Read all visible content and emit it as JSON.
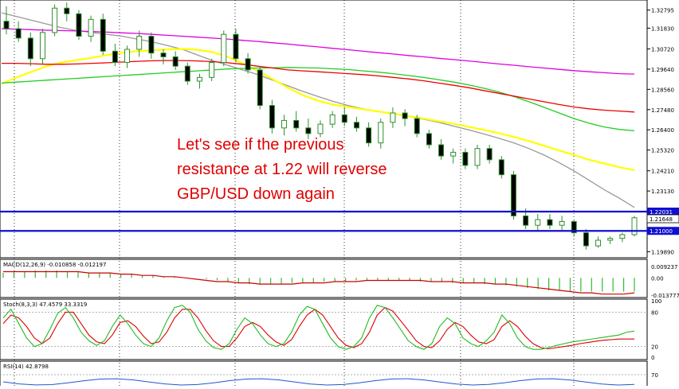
{
  "chart_data": {
    "type": "candlestick",
    "instrument": "GBP/USD",
    "annotation": [
      "Let's see if the previous",
      "resistance at 1.22 will reverse",
      "GBP/USD down again"
    ],
    "price_axis": {
      "ticks": [
        "1.32795",
        "1.31830",
        "1.30720",
        "1.29640",
        "1.28560",
        "1.27480",
        "1.26400",
        "1.25320",
        "1.24210",
        "1.23130",
        "1.19890"
      ],
      "ylim": [
        1.1965,
        1.3325
      ]
    },
    "horizontal_levels": [
      {
        "value": 1.22031,
        "label": "1.22031",
        "color": "#1010d0"
      },
      {
        "value": 1.21,
        "label": "1.21000",
        "color": "#1010d0"
      }
    ],
    "current_price": {
      "value": 1.21648,
      "label": "1.21648"
    },
    "moving_averages": [
      {
        "color": "#999999",
        "values": [
          1.3265,
          1.3245,
          1.3225,
          1.3205,
          1.3185,
          1.317,
          1.316,
          1.315,
          1.314,
          1.3125,
          1.311,
          1.309,
          1.307,
          1.304,
          1.301,
          1.2985,
          1.296,
          1.2935,
          1.2905,
          1.2875,
          1.2845,
          1.2818,
          1.2792,
          1.277,
          1.2752,
          1.2738,
          1.2725,
          1.2712,
          1.2697,
          1.268,
          1.266,
          1.264,
          1.2618,
          1.2595,
          1.257,
          1.254,
          1.2505,
          1.2465,
          1.242,
          1.237,
          1.232,
          1.2275,
          1.2225
        ]
      },
      {
        "color": "#ffff00",
        "values": [
          1.2885,
          1.292,
          1.295,
          1.298,
          1.3,
          1.3012,
          1.3025,
          1.304,
          1.3052,
          1.306,
          1.3065,
          1.307,
          1.3072,
          1.3068,
          1.3055,
          1.303,
          1.2995,
          1.2955,
          1.291,
          1.2865,
          1.2825,
          1.2795,
          1.2775,
          1.2762,
          1.275,
          1.2738,
          1.2726,
          1.2714,
          1.27,
          1.2686,
          1.2672,
          1.2656,
          1.264,
          1.2622,
          1.2602,
          1.258,
          1.2555,
          1.253,
          1.2505,
          1.248,
          1.246,
          1.244,
          1.2425
        ]
      },
      {
        "color": "#22cc22",
        "values": [
          1.289,
          1.2895,
          1.29,
          1.2905,
          1.291,
          1.2915,
          1.292,
          1.2925,
          1.293,
          1.2935,
          1.294,
          1.2945,
          1.295,
          1.2955,
          1.296,
          1.2965,
          1.2968,
          1.297,
          1.2972,
          1.2973,
          1.2972,
          1.297,
          1.2966,
          1.2962,
          1.2955,
          1.2948,
          1.294,
          1.293,
          1.292,
          1.2908,
          1.2895,
          1.288,
          1.2862,
          1.2842,
          1.2818,
          1.279,
          1.276,
          1.273,
          1.27,
          1.2675,
          1.2655,
          1.2642,
          1.2635
        ]
      },
      {
        "color": "#ee0000",
        "values": [
          1.2995,
          1.2995,
          1.2993,
          1.299,
          1.299,
          1.2992,
          1.2995,
          1.2998,
          1.3002,
          1.3006,
          1.3009,
          1.301,
          1.301,
          1.3008,
          1.3004,
          1.2998,
          1.299,
          1.298,
          1.297,
          1.296,
          1.2955,
          1.295,
          1.2945,
          1.294,
          1.2935,
          1.2928,
          1.292,
          1.2912,
          1.2902,
          1.289,
          1.2878,
          1.2865,
          1.285,
          1.2835,
          1.282,
          1.2805,
          1.279,
          1.2775,
          1.2762,
          1.2752,
          1.2745,
          1.274,
          1.2735
        ]
      },
      {
        "color": "#e000e0",
        "values": [
          1.318,
          1.3178,
          1.3175,
          1.3172,
          1.317,
          1.3168,
          1.3165,
          1.3162,
          1.3158,
          1.3155,
          1.315,
          1.3145,
          1.314,
          1.3135,
          1.313,
          1.3125,
          1.3118,
          1.3112,
          1.3105,
          1.3098,
          1.309,
          1.3083,
          1.3075,
          1.3068,
          1.306,
          1.3052,
          1.3045,
          1.3037,
          1.303,
          1.3022,
          1.3015,
          1.3008,
          1.3,
          1.2992,
          1.2985,
          1.2977,
          1.297,
          1.2963,
          1.2956,
          1.295,
          1.2945,
          1.294,
          1.2938
        ]
      }
    ],
    "candles_ohlc": [
      [
        1.322,
        1.33,
        1.315,
        1.318
      ],
      [
        1.318,
        1.322,
        1.311,
        1.313
      ],
      [
        1.313,
        1.316,
        1.298,
        1.302
      ],
      [
        1.302,
        1.318,
        1.299,
        1.316
      ],
      [
        1.316,
        1.331,
        1.314,
        1.329
      ],
      [
        1.329,
        1.332,
        1.322,
        1.326
      ],
      [
        1.326,
        1.328,
        1.312,
        1.314
      ],
      [
        1.314,
        1.325,
        1.311,
        1.323
      ],
      [
        1.323,
        1.326,
        1.304,
        1.306
      ],
      [
        1.306,
        1.31,
        1.298,
        1.3
      ],
      [
        1.3,
        1.309,
        1.297,
        1.307
      ],
      [
        1.307,
        1.317,
        1.303,
        1.314
      ],
      [
        1.314,
        1.316,
        1.302,
        1.305
      ],
      [
        1.305,
        1.307,
        1.299,
        1.303
      ],
      [
        1.303,
        1.306,
        1.296,
        1.298
      ],
      [
        1.298,
        1.3,
        1.288,
        1.29
      ],
      [
        1.29,
        1.294,
        1.286,
        1.292
      ],
      [
        1.292,
        1.302,
        1.29,
        1.3
      ],
      [
        1.3,
        1.317,
        1.298,
        1.315
      ],
      [
        1.315,
        1.318,
        1.3,
        1.302
      ],
      [
        1.302,
        1.305,
        1.294,
        1.296
      ],
      [
        1.296,
        1.298,
        1.275,
        1.277
      ],
      [
        1.277,
        1.28,
        1.262,
        1.265
      ],
      [
        1.265,
        1.272,
        1.261,
        1.269
      ],
      [
        1.269,
        1.274,
        1.263,
        1.265
      ],
      [
        1.265,
        1.27,
        1.259,
        1.262
      ],
      [
        1.262,
        1.269,
        1.26,
        1.267
      ],
      [
        1.267,
        1.274,
        1.265,
        1.272
      ],
      [
        1.272,
        1.276,
        1.266,
        1.268
      ],
      [
        1.268,
        1.271,
        1.263,
        1.265
      ],
      [
        1.265,
        1.268,
        1.255,
        1.257
      ],
      [
        1.257,
        1.27,
        1.254,
        1.268
      ],
      [
        1.268,
        1.276,
        1.265,
        1.273
      ],
      [
        1.273,
        1.275,
        1.266,
        1.27
      ],
      [
        1.27,
        1.272,
        1.26,
        1.262
      ],
      [
        1.262,
        1.264,
        1.254,
        1.256
      ],
      [
        1.256,
        1.259,
        1.248,
        1.25
      ],
      [
        1.25,
        1.254,
        1.246,
        1.252
      ],
      [
        1.252,
        1.254,
        1.243,
        1.245
      ],
      [
        1.245,
        1.256,
        1.243,
        1.254
      ],
      [
        1.254,
        1.256,
        1.246,
        1.248
      ],
      [
        1.248,
        1.25,
        1.238,
        1.24
      ],
      [
        1.24,
        1.242,
        1.216,
        1.218
      ],
      [
        1.218,
        1.222,
        1.211,
        1.213
      ],
      [
        1.213,
        1.219,
        1.21,
        1.216
      ],
      [
        1.216,
        1.219,
        1.211,
        1.213
      ],
      [
        1.213,
        1.218,
        1.21,
        1.215
      ],
      [
        1.215,
        1.216,
        1.207,
        1.209
      ],
      [
        1.209,
        1.211,
        1.2,
        1.202
      ],
      [
        1.202,
        1.207,
        1.201,
        1.205
      ],
      [
        1.205,
        1.207,
        1.203,
        1.206
      ],
      [
        1.206,
        1.209,
        1.204,
        1.208
      ],
      [
        1.208,
        1.218,
        1.207,
        1.217
      ]
    ],
    "macd": {
      "title": "MACD(12,26,9) -0.010858 -0.012197",
      "ticks": [
        "0.009237",
        "0.00",
        "-0.013777"
      ],
      "ylim": [
        -0.0145,
        0.0098
      ],
      "histogram": [
        0.004,
        0.005,
        0.005,
        0.006,
        0.006,
        0.006,
        0.005,
        0.005,
        0.004,
        0.004,
        0.004,
        0.003,
        0.003,
        0.002,
        0.002,
        0.001,
        0.001,
        0.0,
        0.0,
        -0.001,
        -0.002,
        -0.003,
        -0.004,
        -0.005,
        -0.005,
        -0.005,
        -0.005,
        -0.004,
        -0.004,
        -0.004,
        -0.003,
        -0.003,
        -0.003,
        -0.002,
        -0.002,
        -0.002,
        -0.002,
        -0.002,
        -0.002,
        -0.003,
        -0.003,
        -0.003,
        -0.004,
        -0.004,
        -0.004,
        -0.005,
        -0.005,
        -0.006,
        -0.007,
        -0.008,
        -0.009,
        -0.01,
        -0.01,
        -0.011,
        -0.011,
        -0.011,
        -0.011,
        -0.011,
        -0.011,
        -0.011
      ],
      "signal": [
        0.005,
        0.005,
        0.005,
        0.005,
        0.005,
        0.005,
        0.005,
        0.005,
        0.004,
        0.004,
        0.004,
        0.003,
        0.003,
        0.002,
        0.002,
        0.001,
        0.001,
        0.0,
        -0.001,
        -0.002,
        -0.003,
        -0.003,
        -0.004,
        -0.004,
        -0.005,
        -0.005,
        -0.005,
        -0.005,
        -0.004,
        -0.004,
        -0.004,
        -0.003,
        -0.003,
        -0.003,
        -0.002,
        -0.002,
        -0.002,
        -0.002,
        -0.002,
        -0.002,
        -0.003,
        -0.003,
        -0.003,
        -0.004,
        -0.004,
        -0.004,
        -0.005,
        -0.005,
        -0.006,
        -0.007,
        -0.008,
        -0.009,
        -0.01,
        -0.011,
        -0.012,
        -0.012,
        -0.013,
        -0.013,
        -0.013,
        -0.012
      ]
    },
    "stoch": {
      "title": "Stoch(8,3,3) 47.4579 33.3319",
      "ticks": [
        "100",
        "80",
        "20",
        "0"
      ],
      "main": [
        70,
        85,
        60,
        35,
        20,
        25,
        50,
        78,
        88,
        70,
        45,
        30,
        22,
        30,
        55,
        75,
        60,
        40,
        25,
        20,
        35,
        65,
        88,
        92,
        80,
        50,
        30,
        18,
        15,
        25,
        50,
        70,
        60,
        40,
        25,
        20,
        25,
        45,
        75,
        90,
        85,
        60,
        35,
        20,
        15,
        20,
        35,
        70,
        92,
        88,
        70,
        50,
        30,
        20,
        15,
        25,
        55,
        70,
        60,
        35,
        25,
        20,
        30,
        45,
        75,
        60,
        35,
        20,
        15,
        15,
        18,
        22,
        25,
        28,
        30,
        32,
        34,
        36,
        38,
        40,
        45,
        47
      ],
      "signal": [
        60,
        75,
        70,
        55,
        35,
        25,
        35,
        60,
        80,
        80,
        60,
        40,
        28,
        25,
        40,
        62,
        65,
        55,
        38,
        25,
        28,
        45,
        70,
        85,
        85,
        70,
        48,
        30,
        20,
        20,
        35,
        55,
        62,
        55,
        40,
        28,
        22,
        32,
        55,
        75,
        85,
        75,
        55,
        35,
        22,
        18,
        25,
        45,
        75,
        88,
        82,
        65,
        48,
        30,
        20,
        18,
        30,
        50,
        62,
        55,
        40,
        28,
        25,
        32,
        55,
        65,
        55,
        38,
        25,
        18,
        16,
        18,
        20,
        22,
        25,
        27,
        29,
        31,
        32,
        33,
        33,
        33
      ]
    },
    "rsi": {
      "title": "RSI(14) 42.8798",
      "ticks": [
        "70"
      ]
    }
  }
}
